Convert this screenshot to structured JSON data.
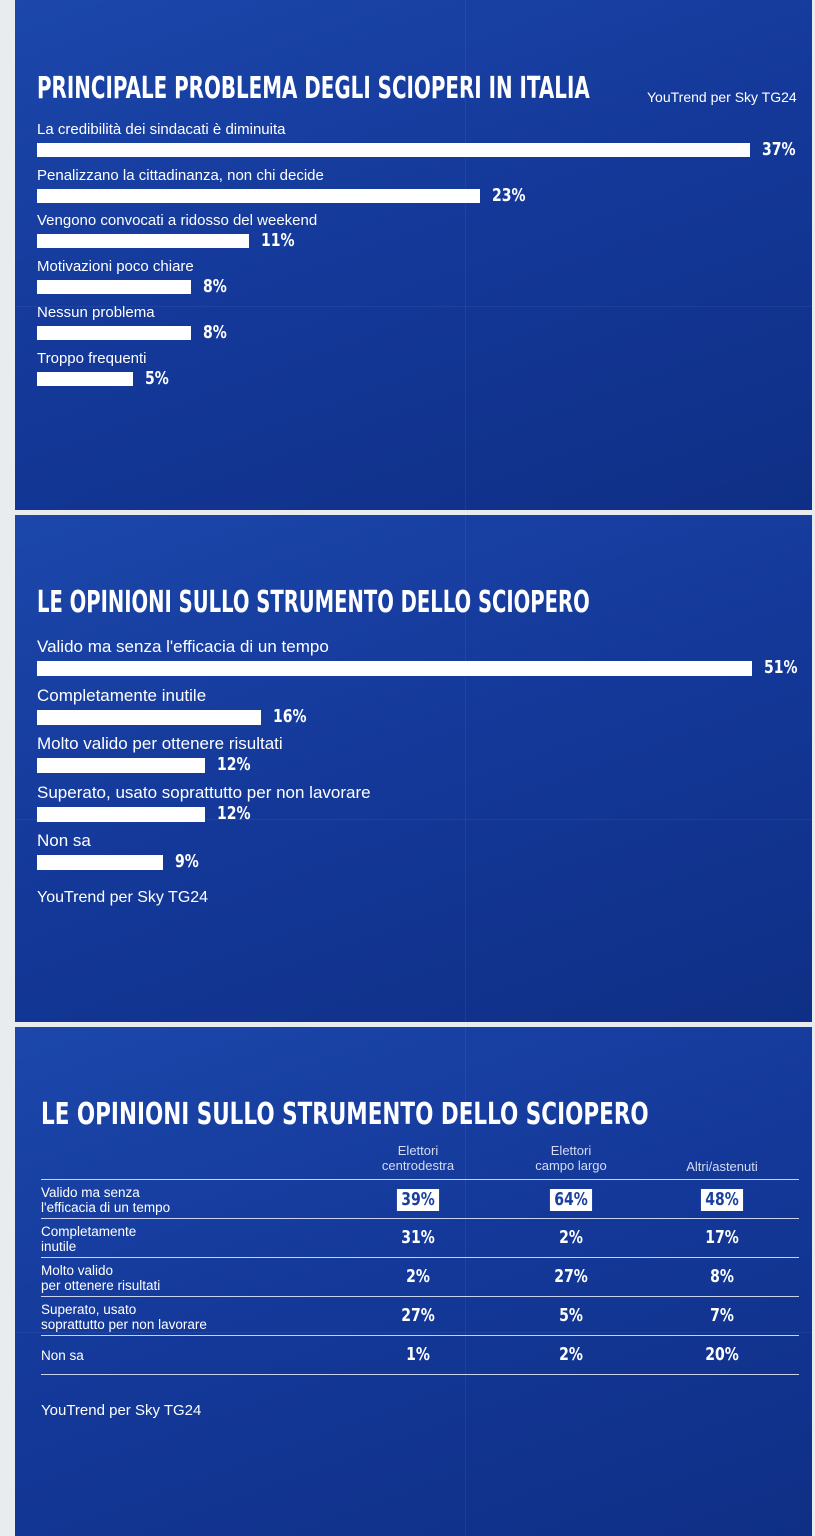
{
  "chart_data": [
    {
      "type": "bar",
      "orientation": "horizontal",
      "title": "PRINCIPALE PROBLEMA DEGLI SCIOPERI IN ITALIA",
      "source": "YouTrend per Sky TG24",
      "categories": [
        "La credibilità dei sindacati è diminuita",
        "Penalizzano la cittadinanza, non chi decide",
        "Vengono convocati a ridosso del weekend",
        "Motivazioni poco chiare",
        "Nessun problema",
        "Troppo frequenti"
      ],
      "values": [
        37,
        23,
        11,
        8,
        8,
        5
      ],
      "value_labels": [
        "37%",
        "23%",
        "11%",
        "8%",
        "8%",
        "5%"
      ],
      "color": "#ffffff"
    },
    {
      "type": "bar",
      "orientation": "horizontal",
      "title": "LE OPINIONI SULLO STRUMENTO DELLO SCIOPERO",
      "source": "YouTrend per Sky TG24",
      "categories": [
        "Valido ma senza l'efficacia di un tempo",
        "Completamente inutile",
        "Molto valido per ottenere risultati",
        "Superato, usato soprattutto per non lavorare",
        "Non sa"
      ],
      "values": [
        51,
        16,
        12,
        12,
        9
      ],
      "value_labels": [
        "51%",
        "16%",
        "12%",
        "12%",
        "9%"
      ],
      "color": "#ffffff"
    }
  ],
  "table": {
    "title": "LE OPINIONI SULLO STRUMENTO DELLO SCIOPERO",
    "columns": [
      "Elettori\ncentrodestra",
      "Elettori\ncampo largo",
      "Altri/astenuti"
    ],
    "rows": [
      {
        "label": "Valido ma senza\nl'efficacia di un tempo",
        "cells": [
          "39%",
          "64%",
          "48%"
        ]
      },
      {
        "label": "Completamente\ninutile",
        "cells": [
          "31%",
          "2%",
          "17%"
        ]
      },
      {
        "label": "Molto valido\nper ottenere risultati",
        "cells": [
          "2%",
          "27%",
          "8%"
        ]
      },
      {
        "label": "Superato, usato\nsoprattutto per non lavorare",
        "cells": [
          "27%",
          "5%",
          "7%"
        ]
      },
      {
        "label": "Non sa",
        "cells": [
          "1%",
          "2%",
          "20%"
        ]
      }
    ],
    "source": "YouTrend per Sky TG24"
  }
}
